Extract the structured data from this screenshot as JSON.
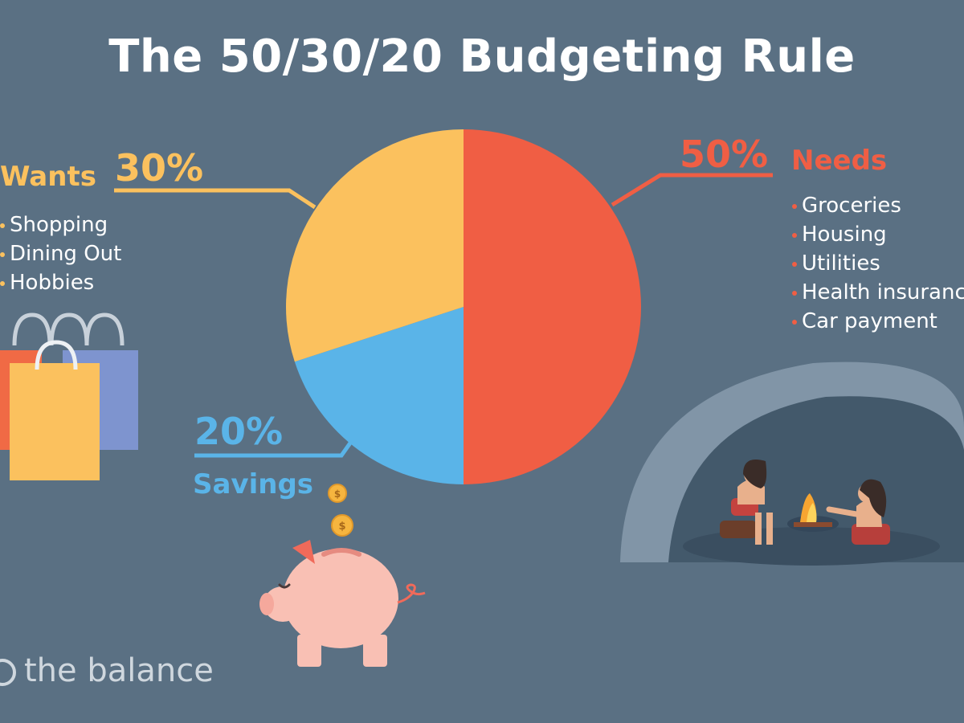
{
  "title": "The 50/30/20 Budgeting Rule",
  "chart_data": {
    "type": "pie",
    "title": "The 50/30/20 Budgeting Rule",
    "slices": [
      {
        "label": "Needs",
        "value": 50,
        "display": "50%",
        "color": "#f05e44",
        "items": [
          "Groceries",
          "Housing",
          "Utilities",
          "Health insurance",
          "Car payment"
        ]
      },
      {
        "label": "Savings",
        "value": 20,
        "display": "20%",
        "color": "#5ab4e8",
        "items": []
      },
      {
        "label": "Wants",
        "value": 30,
        "display": "30%",
        "color": "#fbc15e",
        "items": [
          "Shopping",
          "Dining Out",
          "Hobbies"
        ]
      }
    ],
    "start_angle_deg": 0,
    "direction": "clockwise"
  },
  "colors": {
    "background": "#5a7083",
    "needs": "#f05e44",
    "savings": "#5ab4e8",
    "wants": "#fbc15e",
    "text": "#ffffff"
  },
  "illustrations": [
    "shopping-bags-illustration",
    "piggy-bank-illustration",
    "cave-campfire-illustration"
  ],
  "logo": {
    "text": "the balance"
  }
}
